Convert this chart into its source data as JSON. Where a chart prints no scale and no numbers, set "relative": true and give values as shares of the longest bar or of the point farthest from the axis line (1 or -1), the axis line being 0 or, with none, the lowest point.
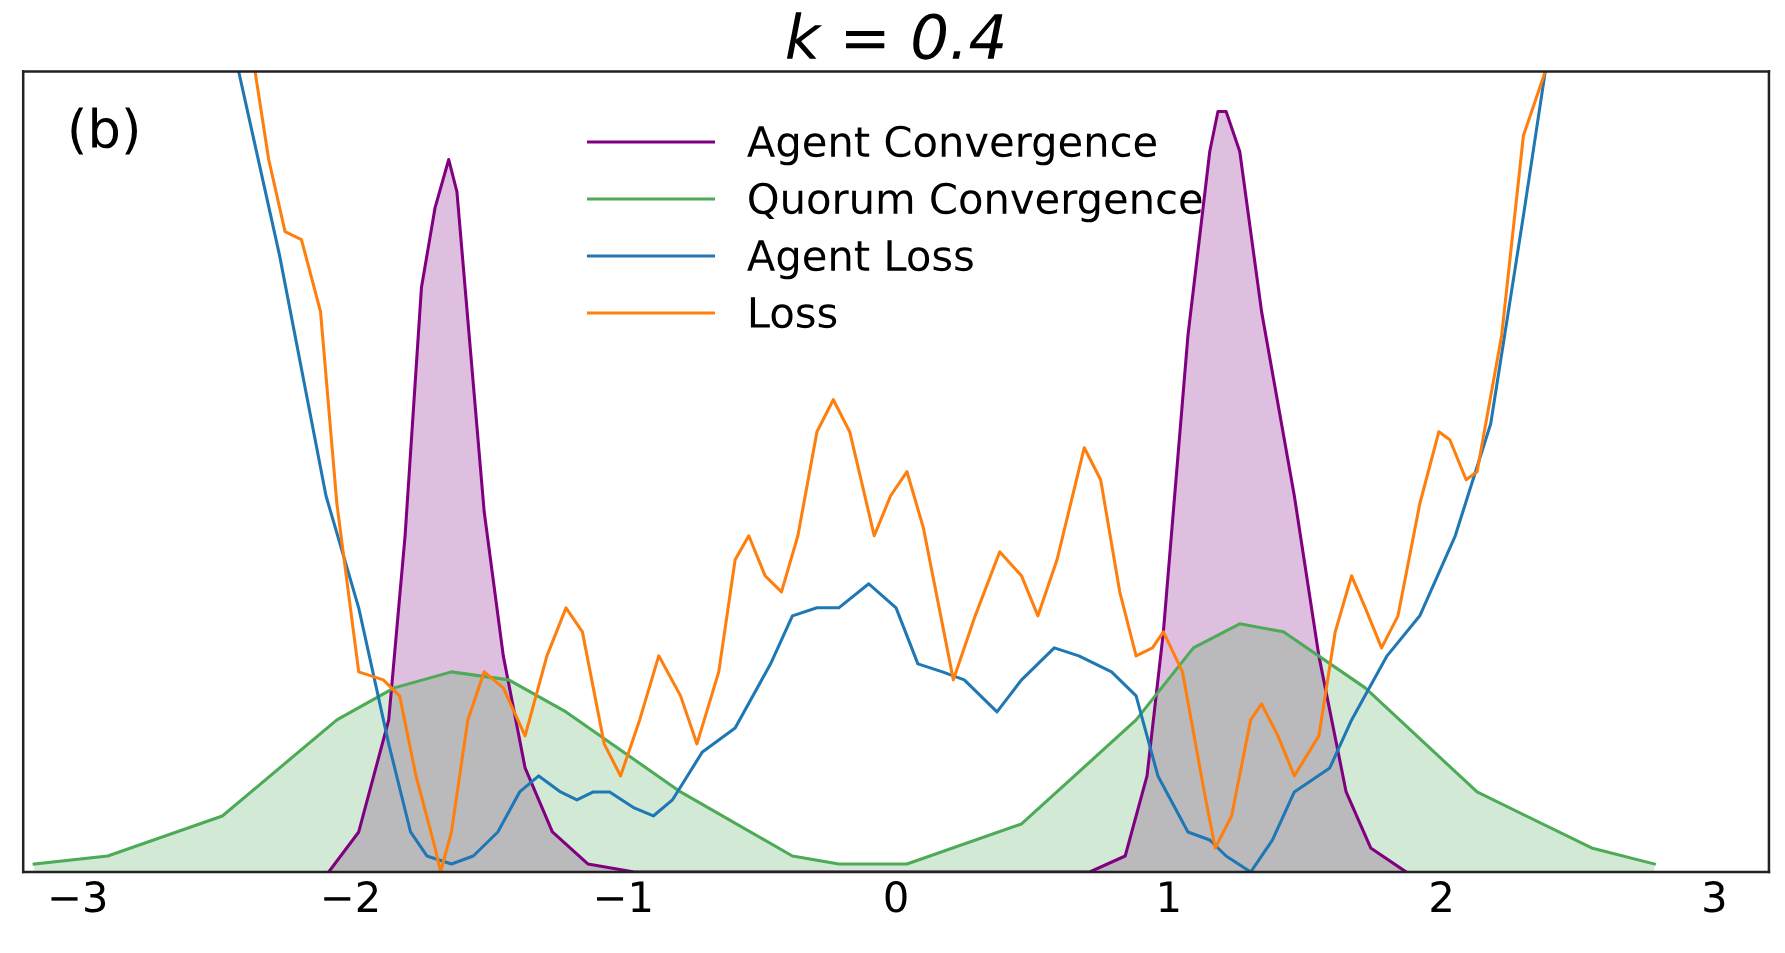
{
  "chart_data": {
    "type": "line",
    "title": "k = 0.4",
    "annotations": [
      "(b)"
    ],
    "relative": true,
    "xlim": [
      -3.2,
      3.2
    ],
    "xticks": [
      -3,
      -2,
      -1,
      0,
      1,
      2,
      3
    ],
    "grid": false,
    "legend": "top",
    "tick_labels": "x",
    "series": [
      {
        "name": "Agent Convergence",
        "type": "area",
        "color": "#800080",
        "x": [
          -2.08,
          -1.97,
          -1.86,
          -1.8,
          -1.74,
          -1.69,
          -1.64,
          -1.61,
          -1.57,
          -1.51,
          -1.44,
          -1.36,
          -1.26,
          -1.13,
          -0.96,
          0.04,
          0.71,
          0.84,
          0.92,
          0.98,
          1.07,
          1.15,
          1.18,
          1.21,
          1.26,
          1.34,
          1.46,
          1.55,
          1.65,
          1.74,
          1.87
        ],
        "values": [
          0.0,
          0.05,
          0.19,
          0.42,
          0.73,
          0.83,
          0.89,
          0.85,
          0.69,
          0.45,
          0.27,
          0.13,
          0.05,
          0.01,
          0.0,
          0.0,
          0.0,
          0.02,
          0.12,
          0.3,
          0.67,
          0.9,
          0.95,
          0.95,
          0.9,
          0.7,
          0.47,
          0.27,
          0.1,
          0.03,
          0.0
        ]
      },
      {
        "name": "Quorum Convergence",
        "type": "area",
        "color": "#4daa57",
        "x": [
          -3.16,
          -2.89,
          -2.47,
          -2.05,
          -1.84,
          -1.63,
          -1.42,
          -1.21,
          -0.79,
          -0.38,
          -0.21,
          0.04,
          0.46,
          0.88,
          1.09,
          1.26,
          1.42,
          1.72,
          2.13,
          2.55,
          2.78
        ],
        "values": [
          0.01,
          0.02,
          0.07,
          0.19,
          0.23,
          0.25,
          0.24,
          0.2,
          0.1,
          0.02,
          0.01,
          0.01,
          0.06,
          0.19,
          0.28,
          0.31,
          0.3,
          0.23,
          0.1,
          0.03,
          0.01
        ]
      },
      {
        "name": "Agent Loss",
        "color": "#1f77b4",
        "x": [
          -2.41,
          -2.26,
          -2.09,
          -1.97,
          -1.86,
          -1.78,
          -1.72,
          -1.63,
          -1.55,
          -1.46,
          -1.38,
          -1.31,
          -1.23,
          -1.17,
          -1.11,
          -1.05,
          -0.96,
          -0.89,
          -0.82,
          -0.71,
          -0.59,
          -0.46,
          -0.38,
          -0.29,
          -0.21,
          -0.1,
          0.0,
          0.08,
          0.17,
          0.25,
          0.37,
          0.46,
          0.58,
          0.67,
          0.79,
          0.88,
          0.96,
          1.07,
          1.15,
          1.21,
          1.3,
          1.38,
          1.46,
          1.59,
          1.67,
          1.8,
          1.92,
          2.05,
          2.18,
          2.3,
          2.38
        ],
        "values": [
          1.0,
          0.77,
          0.47,
          0.33,
          0.16,
          0.05,
          0.02,
          0.01,
          0.02,
          0.05,
          0.1,
          0.12,
          0.1,
          0.09,
          0.1,
          0.1,
          0.08,
          0.07,
          0.09,
          0.15,
          0.18,
          0.26,
          0.32,
          0.33,
          0.33,
          0.36,
          0.33,
          0.26,
          0.25,
          0.24,
          0.2,
          0.24,
          0.28,
          0.27,
          0.25,
          0.22,
          0.12,
          0.05,
          0.04,
          0.02,
          0.0,
          0.04,
          0.1,
          0.13,
          0.19,
          0.27,
          0.32,
          0.42,
          0.56,
          0.82,
          1.0
        ]
      },
      {
        "name": "Loss",
        "color": "#ff7f0e",
        "x": [
          -2.35,
          -2.3,
          -2.24,
          -2.18,
          -2.11,
          -2.05,
          -1.97,
          -1.88,
          -1.82,
          -1.76,
          -1.69,
          -1.67,
          -1.63,
          -1.57,
          -1.51,
          -1.44,
          -1.36,
          -1.28,
          -1.21,
          -1.15,
          -1.07,
          -1.01,
          -0.94,
          -0.87,
          -0.79,
          -0.73,
          -0.65,
          -0.59,
          -0.54,
          -0.48,
          -0.42,
          -0.36,
          -0.29,
          -0.23,
          -0.17,
          -0.08,
          -0.02,
          0.04,
          0.1,
          0.21,
          0.29,
          0.38,
          0.46,
          0.52,
          0.59,
          0.69,
          0.75,
          0.82,
          0.88,
          0.94,
          0.98,
          1.05,
          1.13,
          1.17,
          1.23,
          1.3,
          1.34,
          1.4,
          1.46,
          1.55,
          1.61,
          1.67,
          1.72,
          1.78,
          1.84,
          1.92,
          1.99,
          2.03,
          2.09,
          2.13,
          2.22,
          2.3,
          2.38
        ],
        "values": [
          1.0,
          0.89,
          0.8,
          0.79,
          0.7,
          0.46,
          0.25,
          0.24,
          0.22,
          0.12,
          0.03,
          0.0,
          0.05,
          0.19,
          0.25,
          0.23,
          0.17,
          0.27,
          0.33,
          0.3,
          0.16,
          0.12,
          0.19,
          0.27,
          0.22,
          0.16,
          0.25,
          0.39,
          0.42,
          0.37,
          0.35,
          0.42,
          0.55,
          0.59,
          0.55,
          0.42,
          0.47,
          0.5,
          0.43,
          0.24,
          0.32,
          0.4,
          0.37,
          0.32,
          0.39,
          0.53,
          0.49,
          0.35,
          0.27,
          0.28,
          0.3,
          0.25,
          0.1,
          0.03,
          0.07,
          0.19,
          0.21,
          0.17,
          0.12,
          0.17,
          0.3,
          0.37,
          0.33,
          0.28,
          0.32,
          0.46,
          0.55,
          0.54,
          0.49,
          0.5,
          0.67,
          0.92,
          1.0
        ]
      }
    ]
  }
}
